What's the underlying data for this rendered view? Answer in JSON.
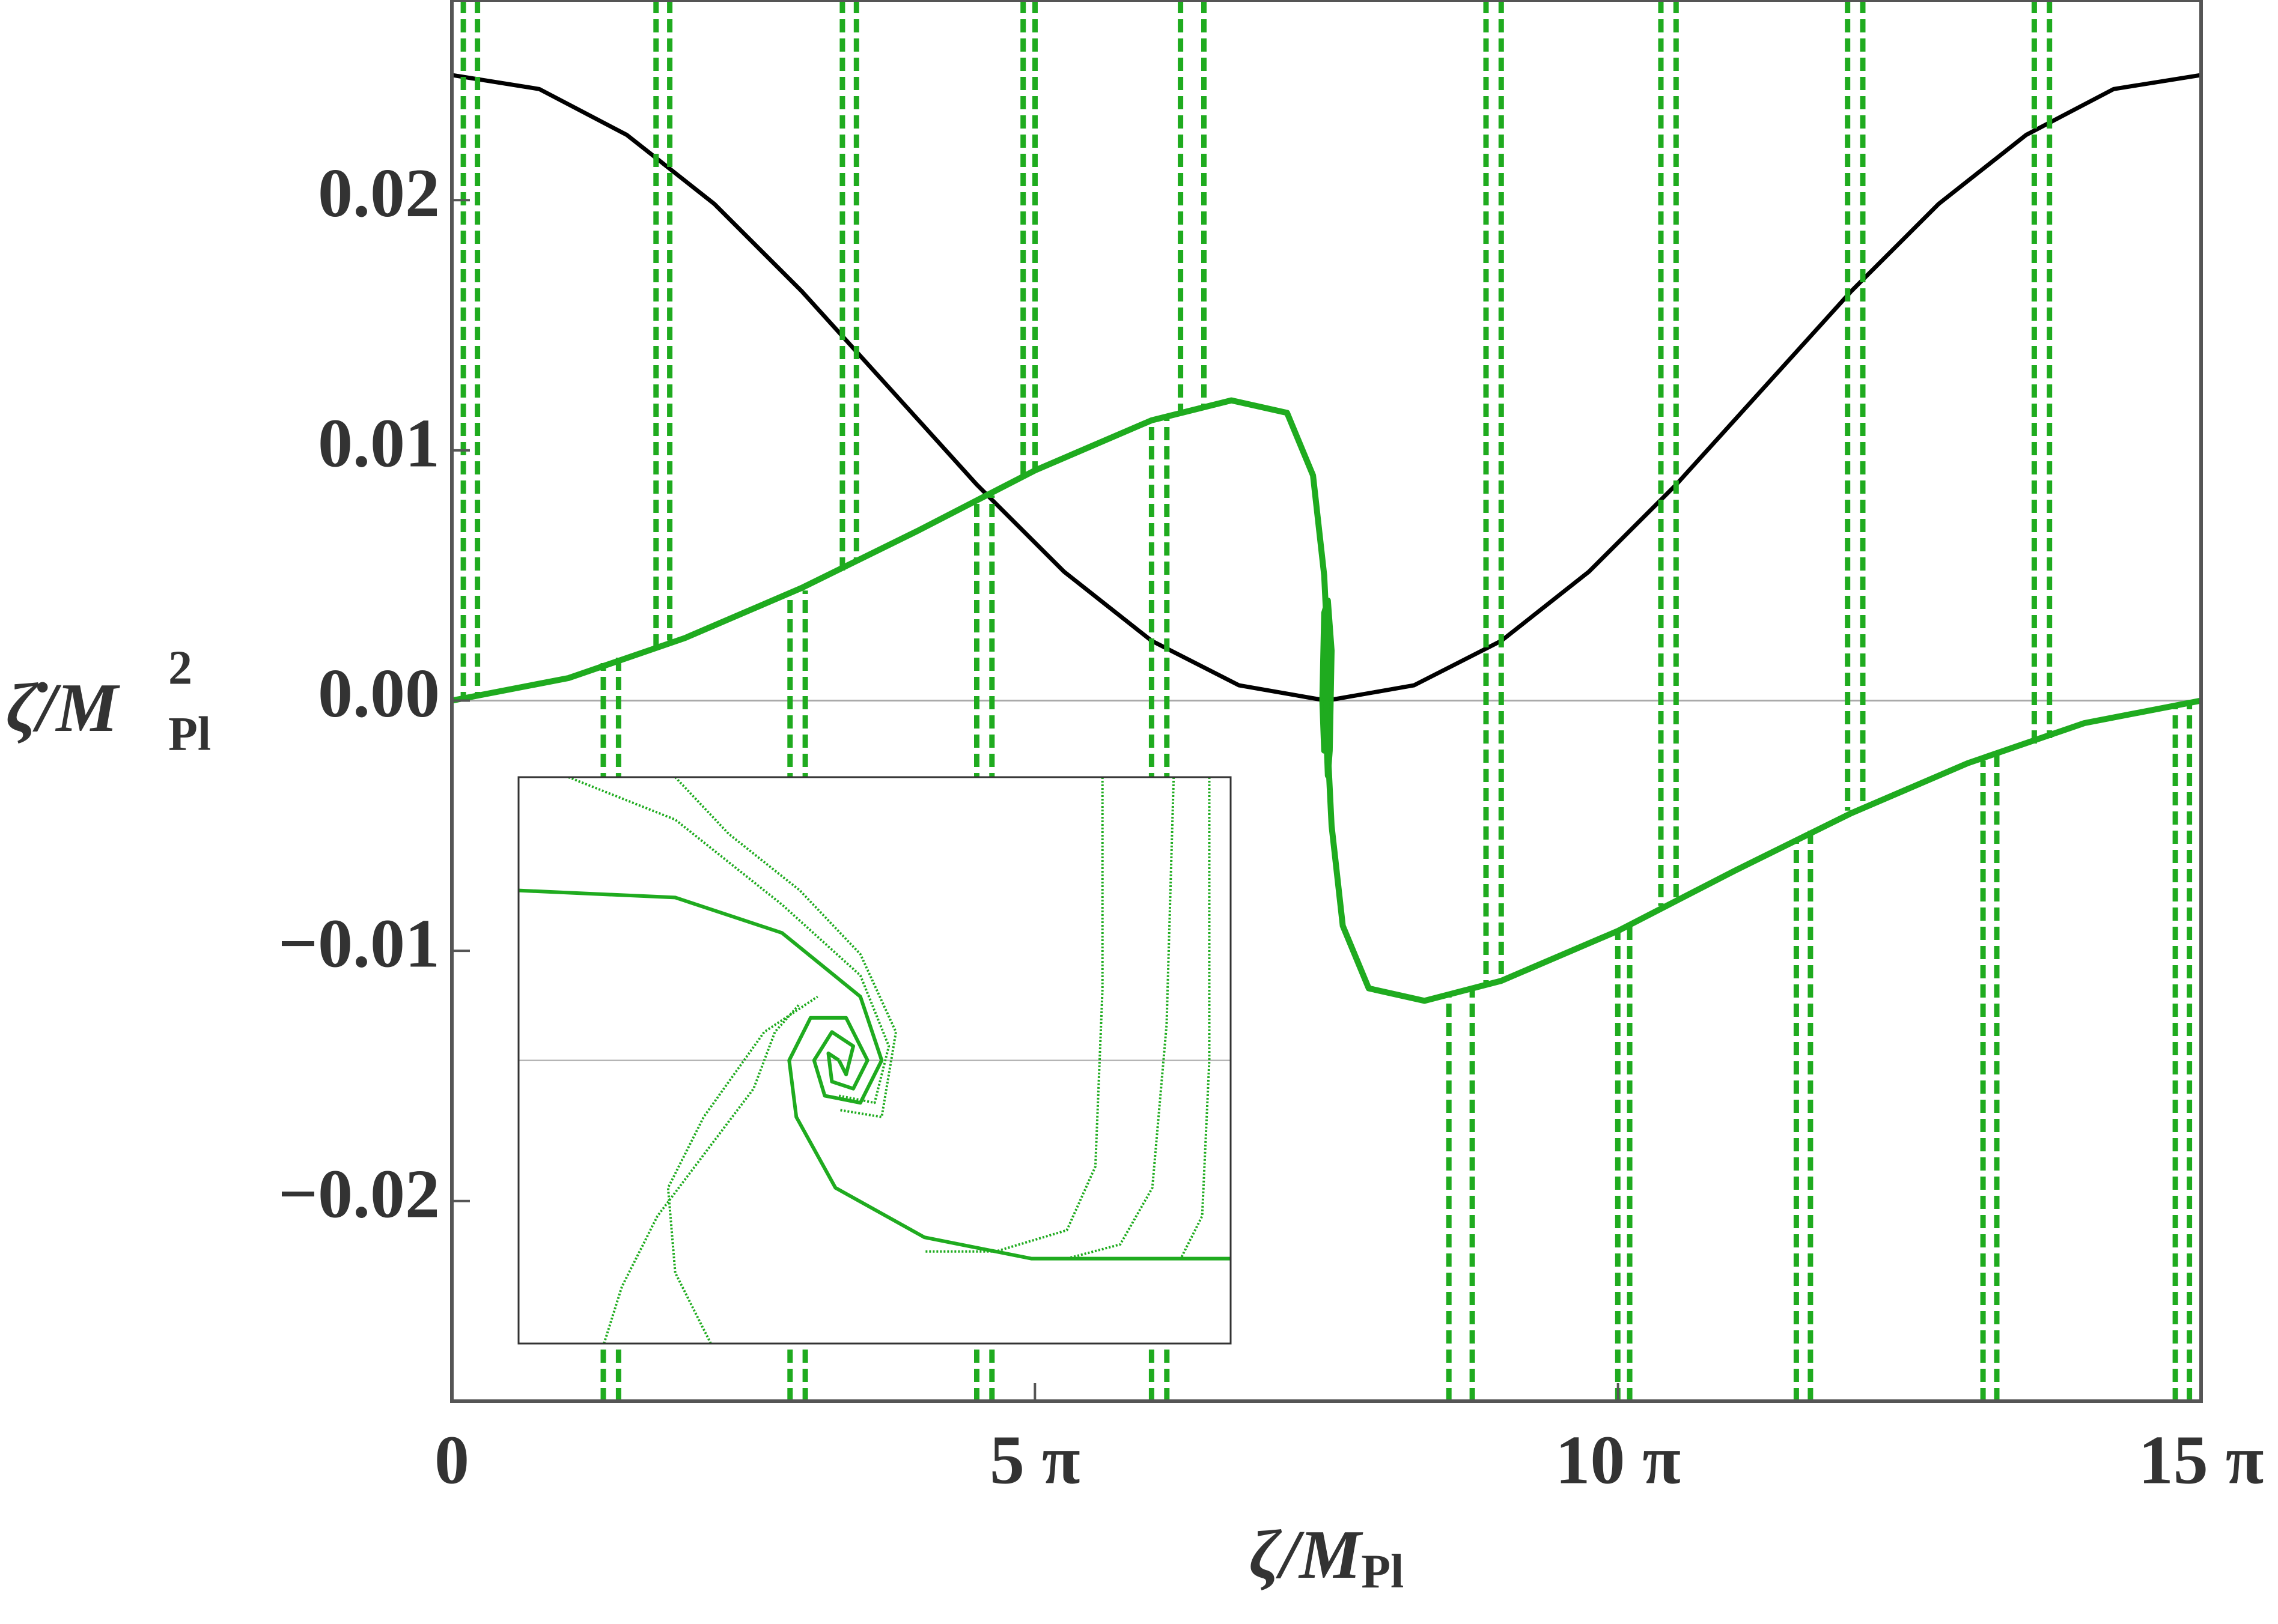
{
  "chart_data": [
    {
      "type": "line",
      "x_label": {
        "text": "ζ/M",
        "sub": "Pl"
      },
      "y_label": {
        "text": "ζ̇/M",
        "sup": "2",
        "sub": "Pl"
      },
      "xlim": [
        0,
        47.124
      ],
      "ylim": [
        -0.028,
        0.028
      ],
      "xticks": [
        0,
        {
          "value": 15.708,
          "label": "5 π"
        },
        {
          "value": 31.416,
          "label": "10 π"
        },
        {
          "value": 47.124,
          "label": "15 π"
        }
      ],
      "yticks": [
        {
          "value": -0.02,
          "label": "−0.02"
        },
        {
          "value": -0.01,
          "label": "−0.01"
        },
        {
          "value": 0,
          "label": "0.00"
        },
        0.01,
        0.02
      ],
      "reference_line": 0,
      "series": [
        {
          "color": "#000000",
          "style": "solid",
          "x": [
            0,
            2.356,
            4.712,
            7.069,
            9.425,
            11.781,
            14.137,
            16.493,
            18.85,
            21.206,
            23.562,
            25.918,
            28.274,
            30.631,
            32.987,
            35.343,
            37.699,
            40.055,
            42.412,
            44.768,
            47.124
          ],
          "values": [
            0.025,
            0.02444,
            0.02261,
            0.01985,
            0.01636,
            0.0125,
            0.00864,
            0.00515,
            0.00239,
            0.00061,
            0,
            0.00061,
            0.00239,
            0.00515,
            0.00864,
            0.0125,
            0.01636,
            0.01985,
            0.02261,
            0.02444,
            0.025
          ]
        },
        {
          "color": "#1fab1f",
          "style": "solid",
          "x": [
            0,
            3.14,
            6.28,
            9.42,
            12.57,
            15.71,
            18.85,
            21.0,
            22.5,
            23.2,
            23.5,
            23.6,
            23.55,
            23.5,
            23.45,
            23.5,
            23.6,
            23.7,
            23.65,
            23.6,
            23.55,
            23.56
          ],
          "values": [
            0,
            0.0009,
            0.0025,
            0.0045,
            0.0068,
            0.0092,
            0.0112,
            0.012,
            0.0115,
            0.009,
            0.005,
            0.002,
            0,
            -0.002,
            0,
            0.0035,
            0.004,
            0.002,
            -0.002,
            -0.003,
            -0.001,
            0
          ]
        },
        {
          "color": "#1fab1f",
          "style": "solid",
          "x": [
            47.124,
            43.98,
            40.84,
            37.7,
            34.56,
            31.42,
            28.27,
            26.2,
            24.7,
            24.0,
            23.7,
            23.6,
            23.56
          ],
          "values": [
            0,
            -0.0009,
            -0.0025,
            -0.0045,
            -0.0068,
            -0.0092,
            -0.0112,
            -0.012,
            -0.0115,
            -0.009,
            -0.005,
            -0.002,
            0
          ]
        },
        {
          "color": "#1fab1f",
          "style": "dashed",
          "x": [
            0.31,
            0.31
          ],
          "values": [
            0.028,
            0.0001
          ]
        },
        {
          "color": "#1fab1f",
          "style": "dashed",
          "x": [
            0.69,
            0.69
          ],
          "values": [
            0.028,
            0.0002
          ]
        },
        {
          "color": "#1fab1f",
          "style": "dashed",
          "x": [
            5.5,
            5.5
          ],
          "values": [
            0.028,
            0.0021
          ]
        },
        {
          "color": "#1fab1f",
          "style": "dashed",
          "x": [
            5.87,
            5.87
          ],
          "values": [
            0.028,
            0.0024
          ]
        },
        {
          "color": "#1fab1f",
          "style": "dashed",
          "x": [
            10.52,
            10.52
          ],
          "values": [
            0.028,
            0.0052
          ]
        },
        {
          "color": "#1fab1f",
          "style": "dashed",
          "x": [
            10.9,
            10.9
          ],
          "values": [
            0.028,
            0.0055
          ]
        },
        {
          "color": "#1fab1f",
          "style": "dashed",
          "x": [
            15.39,
            15.39
          ],
          "values": [
            0.028,
            0.0089
          ]
        },
        {
          "color": "#1fab1f",
          "style": "dashed",
          "x": [
            15.71,
            15.71
          ],
          "values": [
            0.028,
            0.0092
          ]
        },
        {
          "color": "#1fab1f",
          "style": "dashed",
          "x": [
            19.63,
            19.63
          ],
          "values": [
            0.028,
            0.0115
          ]
        },
        {
          "color": "#1fab1f",
          "style": "dashed",
          "x": [
            20.26,
            20.26
          ],
          "values": [
            0.028,
            0.0118
          ]
        },
        {
          "color": "#1fab1f",
          "style": "dashed",
          "x": [
            4.08,
            4.08
          ],
          "values": [
            -0.028,
            0.0015
          ]
        },
        {
          "color": "#1fab1f",
          "style": "dashed",
          "x": [
            4.49,
            4.49
          ],
          "values": [
            -0.028,
            0.0018
          ]
        },
        {
          "color": "#1fab1f",
          "style": "dashed",
          "x": [
            9.11,
            9.11
          ],
          "values": [
            -0.028,
            0.0041
          ]
        },
        {
          "color": "#1fab1f",
          "style": "dashed",
          "x": [
            9.52,
            9.52
          ],
          "values": [
            -0.028,
            0.0044
          ]
        },
        {
          "color": "#1fab1f",
          "style": "dashed",
          "x": [
            14.14,
            14.14
          ],
          "values": [
            -0.028,
            0.0079
          ]
        },
        {
          "color": "#1fab1f",
          "style": "dashed",
          "x": [
            14.55,
            14.55
          ],
          "values": [
            -0.028,
            0.0082
          ]
        },
        {
          "color": "#1fab1f",
          "style": "dashed",
          "x": [
            18.85,
            18.85
          ],
          "values": [
            -0.028,
            0.0112
          ]
        },
        {
          "color": "#1fab1f",
          "style": "dashed",
          "x": [
            19.26,
            19.26
          ],
          "values": [
            -0.028,
            0.0114
          ]
        },
        {
          "color": "#1fab1f",
          "style": "dashed",
          "x": [
            46.81,
            46.81
          ],
          "values": [
            -0.028,
            -0.0001
          ]
        },
        {
          "color": "#1fab1f",
          "style": "dashed",
          "x": [
            46.43,
            46.43
          ],
          "values": [
            -0.028,
            -0.0002
          ]
        },
        {
          "color": "#1fab1f",
          "style": "dashed",
          "x": [
            41.62,
            41.62
          ],
          "values": [
            -0.028,
            -0.0021
          ]
        },
        {
          "color": "#1fab1f",
          "style": "dashed",
          "x": [
            41.25,
            41.25
          ],
          "values": [
            -0.028,
            -0.0024
          ]
        },
        {
          "color": "#1fab1f",
          "style": "dashed",
          "x": [
            36.6,
            36.6
          ],
          "values": [
            -0.028,
            -0.0052
          ]
        },
        {
          "color": "#1fab1f",
          "style": "dashed",
          "x": [
            36.22,
            36.22
          ],
          "values": [
            -0.028,
            -0.0055
          ]
        },
        {
          "color": "#1fab1f",
          "style": "dashed",
          "x": [
            31.73,
            31.73
          ],
          "values": [
            -0.028,
            -0.0089
          ]
        },
        {
          "color": "#1fab1f",
          "style": "dashed",
          "x": [
            31.41,
            31.41
          ],
          "values": [
            -0.028,
            -0.0092
          ]
        },
        {
          "color": "#1fab1f",
          "style": "dashed",
          "x": [
            27.49,
            27.49
          ],
          "values": [
            -0.028,
            -0.0115
          ]
        },
        {
          "color": "#1fab1f",
          "style": "dashed",
          "x": [
            26.86,
            26.86
          ],
          "values": [
            -0.028,
            -0.0118
          ]
        },
        {
          "color": "#1fab1f",
          "style": "dashed",
          "x": [
            43.04,
            43.04
          ],
          "values": [
            0.028,
            -0.0015
          ]
        },
        {
          "color": "#1fab1f",
          "style": "dashed",
          "x": [
            42.63,
            42.63
          ],
          "values": [
            0.028,
            -0.0018
          ]
        },
        {
          "color": "#1fab1f",
          "style": "dashed",
          "x": [
            38.01,
            38.01
          ],
          "values": [
            0.028,
            -0.0041
          ]
        },
        {
          "color": "#1fab1f",
          "style": "dashed",
          "x": [
            37.6,
            37.6
          ],
          "values": [
            0.028,
            -0.0044
          ]
        },
        {
          "color": "#1fab1f",
          "style": "dashed",
          "x": [
            32.98,
            32.98
          ],
          "values": [
            0.028,
            -0.0079
          ]
        },
        {
          "color": "#1fab1f",
          "style": "dashed",
          "x": [
            32.57,
            32.57
          ],
          "values": [
            0.028,
            -0.0082
          ]
        },
        {
          "color": "#1fab1f",
          "style": "dashed",
          "x": [
            28.27,
            28.27
          ],
          "values": [
            0.028,
            -0.0112
          ]
        },
        {
          "color": "#1fab1f",
          "style": "dashed",
          "x": [
            27.86,
            27.86
          ],
          "values": [
            0.028,
            -0.0114
          ]
        }
      ]
    },
    {
      "type": "line",
      "xlim": [
        22.66,
        24.66
      ],
      "ylim": [
        -0.004,
        0.004
      ],
      "reference_line": 0,
      "series": [
        {
          "color": "#1fab1f",
          "style": "solid",
          "x": [
            22.66,
            23.1,
            23.4,
            23.62,
            23.68,
            23.62,
            23.52,
            23.49,
            23.54,
            23.6,
            23.58,
            23.56
          ],
          "values": [
            0.0024,
            0.0023,
            0.0018,
            0.0009,
            0,
            -0.0006,
            -0.0005,
            0,
            0.0004,
            0.0002,
            -0.0002,
            0
          ]
        },
        {
          "color": "#1fab1f",
          "style": "solid",
          "x": [
            24.66,
            24.1,
            23.8,
            23.55,
            23.44,
            23.42,
            23.48,
            23.58,
            23.64,
            23.6,
            23.54,
            23.53,
            23.56
          ],
          "values": [
            -0.0028,
            -0.0028,
            -0.0025,
            -0.0018,
            -0.0008,
            0,
            0.0006,
            0.0006,
            0,
            -0.0004,
            -0.0003,
            0.0001,
            0
          ]
        },
        {
          "color": "#1fab1f",
          "style": "dotted",
          "x": [
            22.8,
            23.1,
            23.4,
            23.62,
            23.7,
            23.66,
            23.56
          ],
          "values": [
            0.004,
            0.0034,
            0.0022,
            0.0012,
            0.0002,
            -0.0006,
            -0.0005
          ]
        },
        {
          "color": "#1fab1f",
          "style": "dotted",
          "x": [
            23.1,
            23.25,
            23.45,
            23.62,
            23.72,
            23.68,
            23.56
          ],
          "values": [
            0.004,
            0.0032,
            0.0024,
            0.0015,
            0.0004,
            -0.0008,
            -0.0007
          ]
        },
        {
          "color": "#1fab1f",
          "style": "dotted",
          "x": [
            22.9,
            22.95,
            23.05,
            23.2,
            23.32,
            23.38,
            23.45
          ],
          "values": [
            -0.004,
            -0.0032,
            -0.0022,
            -0.0012,
            -0.0004,
            0.0004,
            0.0008
          ]
        },
        {
          "color": "#1fab1f",
          "style": "dotted",
          "x": [
            23.2,
            23.1,
            23.08,
            23.18,
            23.35,
            23.5
          ],
          "values": [
            -0.004,
            -0.003,
            -0.0018,
            -0.0008,
            0.0004,
            0.0009
          ]
        },
        {
          "color": "#1fab1f",
          "style": "dotted",
          "x": [
            24.3,
            24.3,
            24.28,
            24.2,
            24.0,
            23.8
          ],
          "values": [
            0.004,
            0.001,
            -0.0015,
            -0.0024,
            -0.0027,
            -0.0027
          ]
        },
        {
          "color": "#1fab1f",
          "style": "dotted",
          "x": [
            24.5,
            24.48,
            24.44,
            24.35,
            24.2
          ],
          "values": [
            0.004,
            0.0005,
            -0.0018,
            -0.0026,
            -0.0028
          ]
        },
        {
          "color": "#1fab1f",
          "style": "dotted",
          "x": [
            24.6,
            24.6,
            24.58,
            24.52
          ],
          "values": [
            0.004,
            0,
            -0.0022,
            -0.0028
          ]
        }
      ]
    }
  ]
}
